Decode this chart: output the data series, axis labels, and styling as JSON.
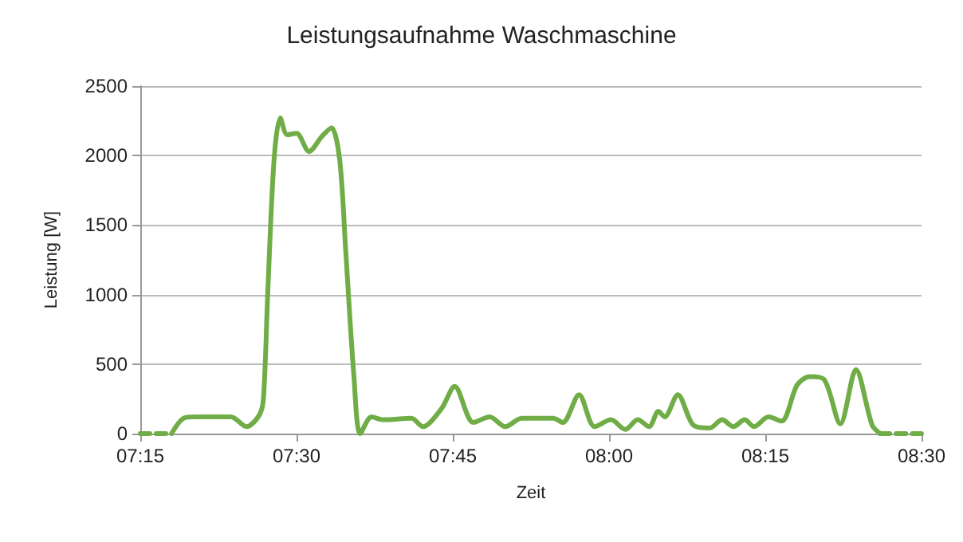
{
  "chart_data": {
    "type": "line",
    "title": "Leistungsaufnahme Waschmaschine",
    "xlabel": "Zeit",
    "ylabel": "Leistung [W]",
    "xlim": [
      7.25,
      8.5
    ],
    "xticks": [
      {
        "value": 7.25,
        "label": "07:15"
      },
      {
        "value": 7.5,
        "label": "07:30"
      },
      {
        "value": 7.75,
        "label": "07:45"
      },
      {
        "value": 8,
        "label": "08:00"
      },
      {
        "value": 8.25,
        "label": "08:15"
      },
      {
        "value": 8.5,
        "label": "08:30"
      }
    ],
    "ylim": [
      0,
      2500
    ],
    "yticks": [
      0,
      500,
      1000,
      1500,
      2000,
      2500
    ],
    "grid": "y",
    "marker": "none",
    "series": [
      {
        "color": "#70ad47",
        "line_style": "dashed",
        "x": [
          7.25,
          7.3
        ],
        "values": [
          0,
          0
        ]
      },
      {
        "color": "#70ad47",
        "line_style": "solid",
        "x": [
          7.3,
          7.319,
          7.337,
          7.395,
          7.42,
          7.44,
          7.447,
          7.454,
          7.464,
          7.474,
          7.485,
          7.5,
          7.52,
          7.541,
          7.556,
          7.569,
          7.579,
          7.592,
          7.602,
          7.62,
          7.638,
          7.684,
          7.702,
          7.732,
          7.753,
          7.783,
          7.809,
          7.834,
          7.86,
          7.911,
          7.926,
          7.952,
          7.977,
          8.003,
          8.026,
          8.046,
          8.064,
          8.079,
          8.089,
          8.11,
          8.135,
          8.161,
          8.181,
          8.199,
          8.217,
          8.232,
          8.255,
          8.276,
          8.301,
          8.321,
          8.344,
          8.37,
          8.395,
          8.421,
          8.434
        ],
        "values": [
          0,
          110,
          120,
          120,
          50,
          130,
          250,
          1020,
          1970,
          2270,
          2150,
          2160,
          2030,
          2140,
          2200,
          1970,
          1290,
          400,
          0,
          120,
          100,
          110,
          50,
          180,
          340,
          80,
          120,
          50,
          110,
          110,
          80,
          280,
          50,
          100,
          30,
          100,
          50,
          160,
          120,
          280,
          60,
          40,
          100,
          50,
          100,
          50,
          120,
          90,
          350,
          410,
          390,
          70,
          460,
          60,
          0
        ]
      },
      {
        "color": "#70ad47",
        "line_style": "dashed",
        "x": [
          8.434,
          8.5
        ],
        "values": [
          0,
          0
        ]
      }
    ]
  }
}
